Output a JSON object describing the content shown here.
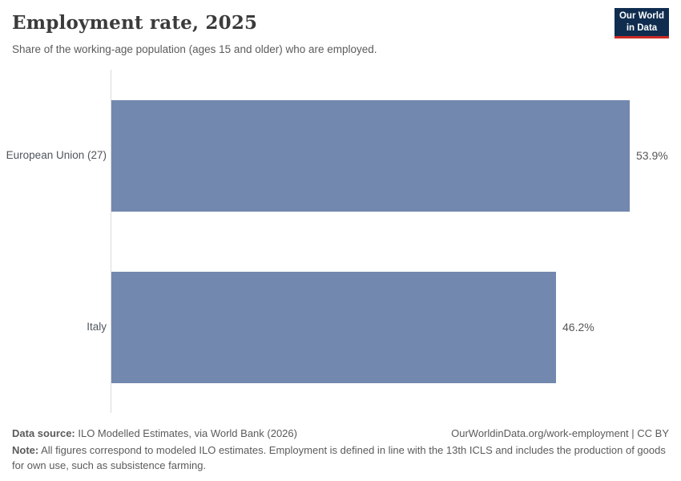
{
  "header": {
    "title": "Employment rate, 2025",
    "subtitle": "Share of the working-age population (ages 15 and older) who are employed.",
    "logo": {
      "line1": "Our World",
      "line2": "in Data"
    }
  },
  "chart_data": {
    "type": "bar",
    "orientation": "horizontal",
    "title": "Employment rate, 2025",
    "categories": [
      "European Union (27)",
      "Italy"
    ],
    "values": [
      53.9,
      46.2
    ],
    "value_labels": [
      "53.9%",
      "46.2%"
    ],
    "xlabel": "",
    "ylabel": "",
    "xlim": [
      0,
      58
    ],
    "grid": false,
    "legend": false,
    "bar_color": "#7288ae"
  },
  "footer": {
    "data_source_label": "Data source:",
    "data_source_text": " ILO Modelled Estimates, via World Bank (2026)",
    "link_text": "OurWorldinData.org/work-employment | CC BY",
    "note_label": "Note:",
    "note_text": " All figures correspond to modeled ILO estimates. Employment is defined in line with the 13th ICLS and includes the production of goods for own use, such as subsistence farming."
  },
  "colors": {
    "bar": "#7288ae",
    "title": "#3b3b3b",
    "text": "#5b5b5b",
    "logo_bg": "#102d50",
    "logo_stripe": "#cc2a24",
    "axis": "#dadada"
  }
}
